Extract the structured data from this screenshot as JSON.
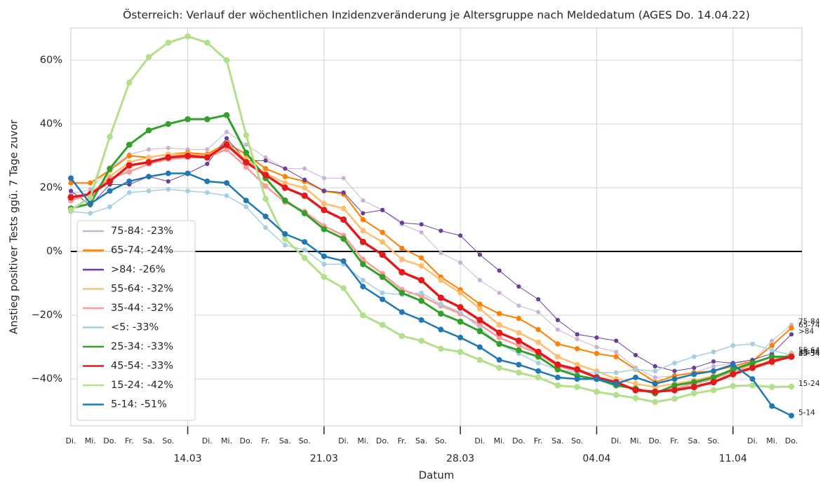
{
  "chart_data": {
    "type": "line",
    "title": "Österreich: Verlauf der wöchentlichen Inzidenzveränderung je Altersgruppe nach Meldedatum (AGES Do. 14.04.22)",
    "xlabel": "Datum",
    "ylabel": "Anstieg positiver Tests ggü. 7 Tage zuvor",
    "x_minor_labels": [
      "Di.",
      "Mi.",
      "Do.",
      "Fr.",
      "Sa.",
      "So.",
      null,
      "Di.",
      "Mi.",
      "Do.",
      "Fr.",
      "Sa.",
      "So.",
      null,
      "Di.",
      "Mi.",
      "Do.",
      "Fr.",
      "Sa.",
      "So.",
      null,
      "Di.",
      "Mi.",
      "Do.",
      "Fr.",
      "Sa.",
      "So.",
      null,
      "Di.",
      "Mi.",
      "Do.",
      "Fr.",
      "Sa.",
      "So.",
      null,
      "Di.",
      "Mi.",
      "Do."
    ],
    "x_major_labels": [
      "14.03",
      "21.03",
      "28.03",
      "04.04",
      "11.04"
    ],
    "ylim": [
      -54.7,
      70.1
    ],
    "yticks": [
      {
        "value": -40,
        "label": "−40%"
      },
      {
        "value": -20,
        "label": "−20%"
      },
      {
        "value": 0,
        "label": "0%"
      },
      {
        "value": 20,
        "label": "20%"
      },
      {
        "value": 40,
        "label": "40%"
      },
      {
        "value": 60,
        "label": "60%"
      }
    ],
    "hline": 0,
    "grid": true,
    "legend": "lower left",
    "series": [
      {
        "name": "75-84: -23%",
        "end_label": "75-84",
        "color": "#cab2d6",
        "linewidth": 1,
        "values": [
          18,
          19.5,
          26,
          30.5,
          32,
          32.5,
          32,
          32,
          37.5,
          33.5,
          29.5,
          26,
          26,
          23,
          23,
          16,
          13,
          8.5,
          6,
          -0.5,
          -3.5,
          -9,
          -13,
          -17,
          -19,
          -24.5,
          -27.5,
          -30,
          -31.5,
          -36.5,
          -39.5,
          -39,
          -38,
          -36,
          -35,
          -34.5,
          -28,
          -23
        ]
      },
      {
        "name": "65-74: -24%",
        "end_label": "65-74",
        "color": "#ff7f00",
        "linewidth": 2,
        "values": [
          21.5,
          21.5,
          25.5,
          30,
          29.5,
          30.5,
          31,
          30.5,
          34,
          30.5,
          26,
          23.5,
          22,
          19,
          18,
          10,
          6,
          1,
          -2,
          -8,
          -12,
          -16.5,
          -19.5,
          -21,
          -24.5,
          -29,
          -30.5,
          -32,
          -33,
          -37,
          -41,
          -39,
          -38,
          -37.5,
          -36,
          -34.5,
          -29.5,
          -24
        ]
      },
      {
        "name": ">84: -26%",
        "end_label": ">84",
        "color": "#6a3d9a",
        "linewidth": 1,
        "values": [
          19,
          14.5,
          21,
          21,
          23.5,
          22,
          24.5,
          27.5,
          35.5,
          28.5,
          28.5,
          26,
          22.5,
          19,
          18.5,
          12,
          13,
          9,
          8.5,
          6.5,
          5,
          -1,
          -6,
          -11,
          -15,
          -21.5,
          -26,
          -27,
          -28,
          -32.5,
          -36,
          -37.5,
          -36.5,
          -34.5,
          -35,
          -34,
          -32,
          -26
        ]
      },
      {
        "name": "55-64: -32%",
        "end_label": "55-64",
        "color": "#fdbf6f",
        "linewidth": 2.5,
        "values": [
          16,
          18,
          23.5,
          28,
          29.5,
          30.5,
          30.5,
          30,
          33.5,
          29,
          24.5,
          21.5,
          20,
          15,
          13.5,
          6.5,
          3,
          -2.5,
          -4.5,
          -9,
          -13,
          -18,
          -23,
          -25.5,
          -28.5,
          -33,
          -35.5,
          -37.5,
          -40,
          -41.5,
          -42.5,
          -41.5,
          -40.5,
          -39,
          -37.5,
          -35.5,
          -35,
          -32
        ]
      },
      {
        "name": "35-44: -32%",
        "end_label": "35-44",
        "color": "#fb9a99",
        "linewidth": 2.5,
        "values": [
          16,
          18,
          23,
          25,
          27.5,
          29,
          29.5,
          29.5,
          32,
          26.5,
          20.5,
          15.5,
          12.5,
          8,
          5,
          -2.5,
          -7,
          -12,
          -14,
          -17,
          -19.5,
          -23,
          -27,
          -29.5,
          -32,
          -36,
          -37.5,
          -39.5,
          -41.5,
          -43.5,
          -44,
          -43,
          -41.5,
          -40,
          -37.5,
          -36.5,
          -34,
          -32.5
        ]
      },
      {
        "name": "<5: -33%",
        "end_label": "<5",
        "color": "#a6cee3",
        "linewidth": 1.5,
        "values": [
          12.5,
          12,
          14,
          18.5,
          19,
          19.5,
          19,
          18.5,
          17.5,
          14,
          7.5,
          2,
          0.5,
          -4,
          -4,
          -9,
          -13,
          -13.5,
          -13,
          -16.5,
          -19,
          -24,
          -29,
          -32,
          -35,
          -37,
          -38,
          -38,
          -38,
          -37,
          -37.5,
          -35,
          -33,
          -31.5,
          -29.5,
          -29,
          -31,
          -32.5
        ]
      },
      {
        "name": "25-34: -33%",
        "end_label": "25-34",
        "color": "#33a02c",
        "linewidth": 3,
        "values": [
          13.5,
          15,
          26,
          33.5,
          38,
          40,
          41.5,
          41.5,
          42.8,
          31,
          23,
          16,
          12,
          7,
          4,
          -4,
          -8,
          -13,
          -15.5,
          -19.5,
          -22,
          -25,
          -29,
          -31,
          -33,
          -37,
          -39,
          -40,
          -42,
          -43,
          -44.5,
          -42,
          -41,
          -39.5,
          -37,
          -35,
          -33,
          -33
        ]
      },
      {
        "name": "45-54: -33%",
        "end_label": "45-54",
        "color": "#e31a1c",
        "linewidth": 3.5,
        "values": [
          17,
          18,
          22,
          27,
          28,
          29.5,
          30,
          29.5,
          33.5,
          28,
          24,
          20,
          17.5,
          13,
          10,
          3,
          -1,
          -6.5,
          -9,
          -14.5,
          -17.5,
          -21.5,
          -25.5,
          -28,
          -31.5,
          -35.5,
          -37,
          -39.5,
          -41,
          -43.5,
          -44,
          -43.5,
          -42.5,
          -41,
          -38.5,
          -36.5,
          -34.5,
          -33
        ]
      },
      {
        "name": "15-24: -42%",
        "end_label": "15-24",
        "color": "#b2df8a",
        "linewidth": 3,
        "values": [
          13,
          17,
          36,
          53,
          61,
          65.5,
          67.5,
          65.5,
          60,
          36.5,
          16.5,
          4,
          -2,
          -8,
          -11.5,
          -20,
          -23,
          -26.5,
          -28,
          -30.5,
          -31.5,
          -34,
          -36.5,
          -38,
          -39.5,
          -42,
          -42.5,
          -44,
          -45,
          -46,
          -47.2,
          -46.2,
          -44.5,
          -43.5,
          -42.2,
          -42,
          -42.5,
          -42.4
        ]
      },
      {
        "name": "5-14: -51%",
        "end_label": "5-14",
        "color": "#1f78b4",
        "linewidth": 2.5,
        "values": [
          23,
          15,
          19,
          22,
          23.5,
          24.5,
          24.5,
          22,
          21.5,
          16,
          11,
          5.5,
          3,
          -1.5,
          -3,
          -11,
          -15,
          -19,
          -21.5,
          -24.5,
          -27,
          -30,
          -34,
          -35.5,
          -37.5,
          -39.5,
          -40,
          -40,
          -41.5,
          -39.5,
          -41.5,
          -40,
          -38.5,
          -37.5,
          -35.5,
          -40,
          -48.5,
          -51.5
        ]
      }
    ]
  }
}
